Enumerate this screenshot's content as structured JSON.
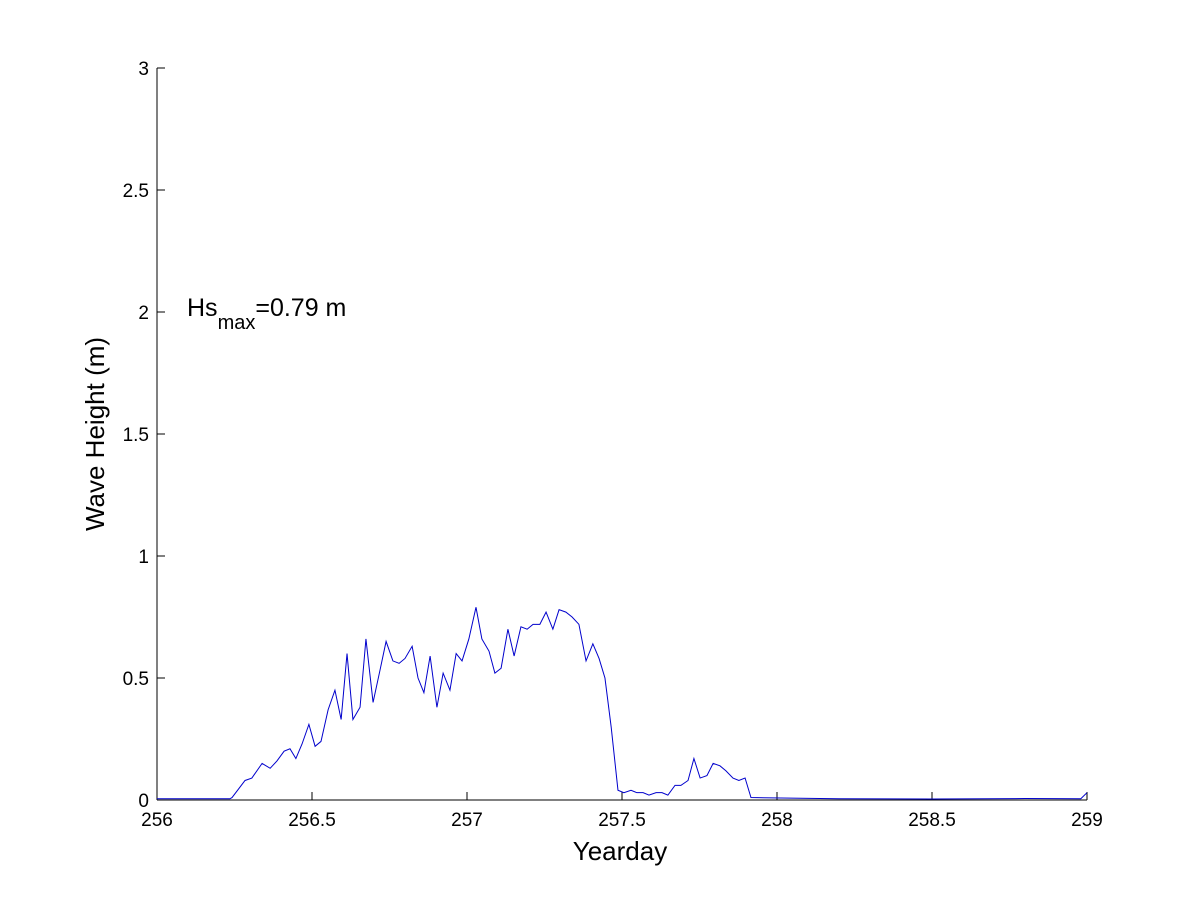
{
  "chart_data": {
    "type": "line",
    "xlabel": "Yearday",
    "ylabel": "Wave Height (m)",
    "annotation": {
      "text": "Hs",
      "subscript": "max",
      "suffix": "=0.79 m"
    },
    "color": "#0000cc",
    "x": [
      256.0,
      256.1,
      256.235,
      256.242,
      256.284,
      256.306,
      256.339,
      256.365,
      256.387,
      256.41,
      256.429,
      256.448,
      256.468,
      256.49,
      256.51,
      256.529,
      256.552,
      256.574,
      256.594,
      256.613,
      256.632,
      256.655,
      256.674,
      256.697,
      256.719,
      256.739,
      256.761,
      256.781,
      256.8,
      256.823,
      256.842,
      256.861,
      256.881,
      256.903,
      256.923,
      256.945,
      256.965,
      256.984,
      257.006,
      257.029,
      257.048,
      257.071,
      257.09,
      257.11,
      257.132,
      257.152,
      257.174,
      257.194,
      257.213,
      257.235,
      257.255,
      257.277,
      257.297,
      257.319,
      257.339,
      257.361,
      257.384,
      257.406,
      257.426,
      257.445,
      257.465,
      257.487,
      257.506,
      257.529,
      257.548,
      257.568,
      257.587,
      257.61,
      257.629,
      257.648,
      257.671,
      257.69,
      257.713,
      257.732,
      257.752,
      257.774,
      257.794,
      257.816,
      257.835,
      257.858,
      257.877,
      257.897,
      257.916,
      258.2,
      258.5,
      258.8,
      258.98,
      259.0
    ],
    "values": [
      0.005,
      0.005,
      0.005,
      0.01,
      0.08,
      0.09,
      0.15,
      0.13,
      0.16,
      0.2,
      0.21,
      0.17,
      0.23,
      0.31,
      0.22,
      0.24,
      0.37,
      0.45,
      0.33,
      0.6,
      0.33,
      0.38,
      0.66,
      0.4,
      0.53,
      0.65,
      0.57,
      0.56,
      0.58,
      0.63,
      0.5,
      0.44,
      0.59,
      0.38,
      0.52,
      0.45,
      0.6,
      0.57,
      0.66,
      0.79,
      0.66,
      0.61,
      0.52,
      0.54,
      0.7,
      0.59,
      0.71,
      0.7,
      0.72,
      0.72,
      0.77,
      0.7,
      0.78,
      0.77,
      0.75,
      0.72,
      0.57,
      0.64,
      0.58,
      0.5,
      0.3,
      0.04,
      0.03,
      0.04,
      0.03,
      0.03,
      0.02,
      0.03,
      0.03,
      0.02,
      0.06,
      0.06,
      0.08,
      0.17,
      0.09,
      0.1,
      0.15,
      0.14,
      0.12,
      0.09,
      0.08,
      0.09,
      0.01,
      0.005,
      0.004,
      0.006,
      0.005,
      0.03
    ],
    "xlim": [
      256,
      259
    ],
    "xticks": [
      256,
      256.5,
      257,
      257.5,
      258,
      258.5,
      259
    ],
    "ylim": [
      0,
      3
    ],
    "yticks": [
      0,
      0.5,
      1,
      1.5,
      2,
      2.5,
      3
    ],
    "grid": false
  }
}
